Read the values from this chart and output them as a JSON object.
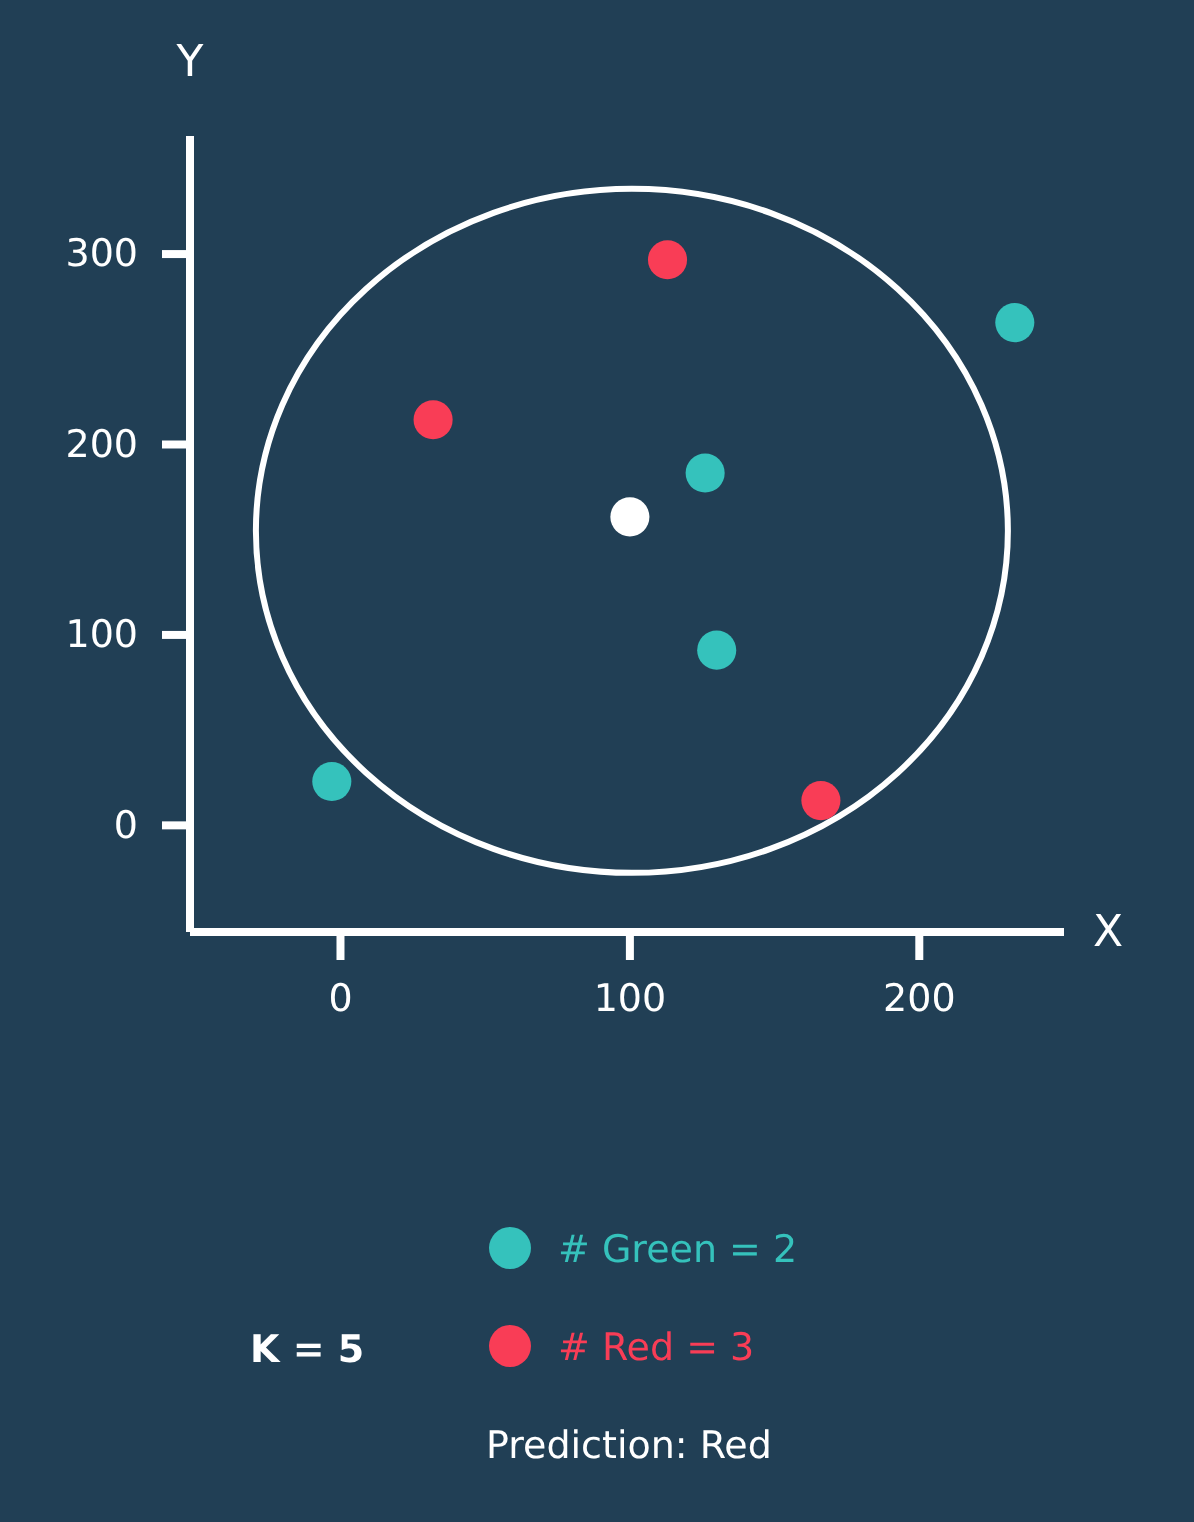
{
  "chart_data": {
    "type": "scatter",
    "xlabel": "X",
    "ylabel": "Y",
    "xlim": [
      -52,
      250
    ],
    "ylim": [
      -56,
      362
    ],
    "xticks": [
      0,
      100,
      200
    ],
    "yticks": [
      0,
      100,
      200,
      300
    ],
    "grid": false,
    "marker": "circle",
    "legend": "bottom",
    "series": [
      {
        "name": "# Green = 2",
        "color": "#35c2bc",
        "x": [
          -3,
          233,
          126,
          130
        ],
        "values": [
          23,
          264,
          185,
          92
        ]
      },
      {
        "name": "# Red = 3",
        "color": "#f93d56",
        "x": [
          32,
          113,
          166
        ],
        "values": [
          213,
          297,
          13
        ]
      },
      {
        "color": "#ffffff",
        "x": [
          100
        ],
        "values": [
          162
        ]
      }
    ],
    "annotations": [
      "K = 5",
      "Prediction: Red"
    ]
  }
}
